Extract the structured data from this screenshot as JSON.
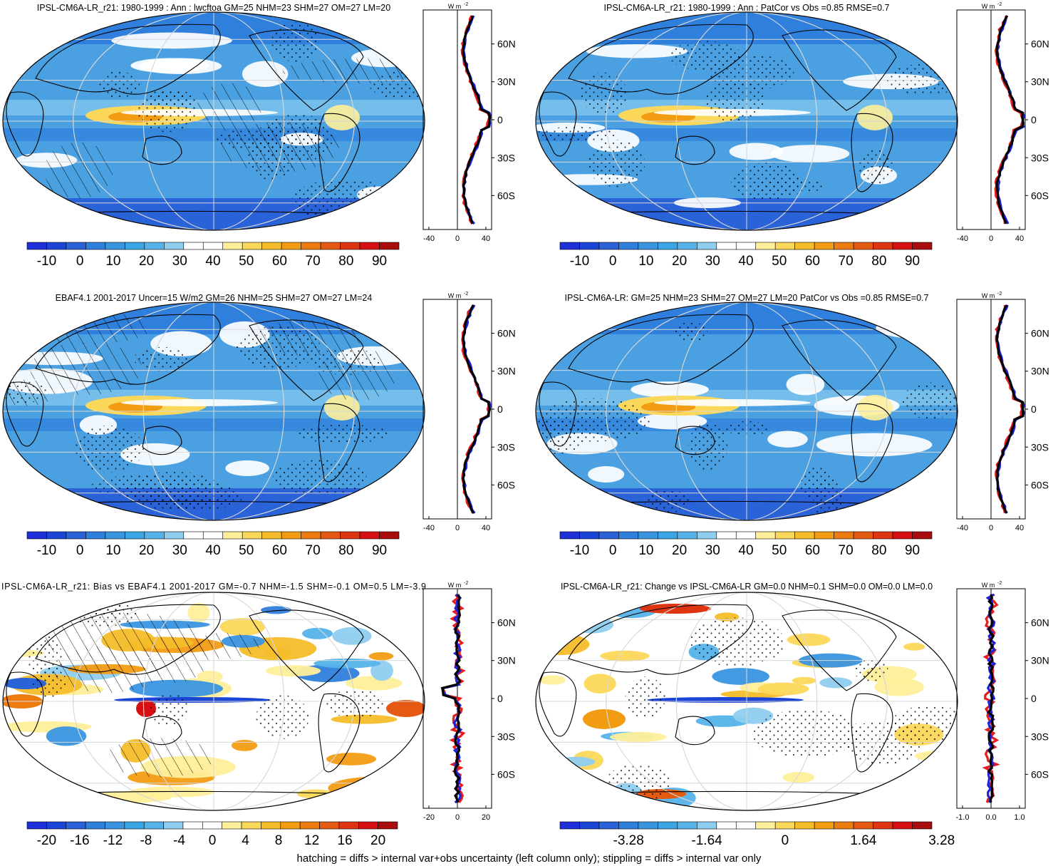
{
  "panels": [
    {
      "id": "p1",
      "title": "IPSL-CM6A-LR_r21: 1980-1999 : Ann : lwcftoa GM=25 NHM=23 SHM=27 OM=27 LM=20",
      "colorbar_ticks": [
        "-10",
        "0",
        "10",
        "20",
        "30",
        "40",
        "50",
        "60",
        "70",
        "80",
        "90"
      ],
      "profile_unit": "W m",
      "profile_unit_exp": "-2",
      "profile_xticks": [
        "-40",
        "0",
        "40"
      ],
      "profile_lat_labels": [
        "60N",
        "30N",
        "0",
        "30S",
        "60S"
      ],
      "hatching": true,
      "stippling": true
    },
    {
      "id": "p2",
      "title": "IPSL-CM6A-LR_r21: 1980-1999 : Ann : PatCor vs Obs =0.85 RMSE=0.7",
      "colorbar_ticks": [
        "-10",
        "0",
        "10",
        "20",
        "30",
        "40",
        "50",
        "60",
        "70",
        "80",
        "90"
      ],
      "profile_unit": "W m",
      "profile_unit_exp": "-2",
      "profile_xticks": [
        "-40",
        "0",
        "40"
      ],
      "profile_lat_labels": [
        "60N",
        "30N",
        "0",
        "30S",
        "60S"
      ],
      "hatching": false,
      "stippling": true
    },
    {
      "id": "p3",
      "title": "EBAF4.1 2001-2017 Uncer=15 W/m2 GM=26 NHM=25 SHM=27 OM=27 LM=24",
      "colorbar_ticks": [
        "-10",
        "0",
        "10",
        "20",
        "30",
        "40",
        "50",
        "60",
        "70",
        "80",
        "90"
      ],
      "profile_unit": "W m",
      "profile_unit_exp": "-2",
      "profile_xticks": [
        "-40",
        "0",
        "40"
      ],
      "profile_lat_labels": [
        "60N",
        "30N",
        "0",
        "30S",
        "60S"
      ],
      "hatching": true,
      "stippling": true
    },
    {
      "id": "p4",
      "title": "IPSL-CM6A-LR: GM=25 NHM=23 SHM=27 OM=27 LM=20 PatCor vs Obs =0.85 RMSE=0.7",
      "colorbar_ticks": [
        "-10",
        "0",
        "10",
        "20",
        "30",
        "40",
        "50",
        "60",
        "70",
        "80",
        "90"
      ],
      "profile_unit": "W m",
      "profile_unit_exp": "-2",
      "profile_xticks": [
        "-40",
        "0",
        "40"
      ],
      "profile_lat_labels": [
        "60N",
        "30N",
        "0",
        "30S",
        "60S"
      ],
      "hatching": false,
      "stippling": true
    },
    {
      "id": "p5",
      "title": "IPSL-CM6A-LR_r21: Bias vs EBAF4.1 2001-2017 GM=-0.7 NHM=-1.5 SHM=-0.1 OM=0.5 LM=-3.9",
      "colorbar_ticks": [
        "-20",
        "-16",
        "-12",
        "-8",
        "-4",
        "0",
        "4",
        "8",
        "12",
        "16",
        "20"
      ],
      "profile_unit": "W m",
      "profile_unit_exp": "-2",
      "profile_xticks": [
        "-20",
        "0",
        "20"
      ],
      "profile_lat_labels": [
        "60N",
        "30N",
        "0",
        "30S",
        "60S"
      ],
      "hatching": true,
      "stippling": true
    },
    {
      "id": "p6",
      "title": "IPSL-CM6A-LR_r21: Change vs IPSL-CM6A-LR GM=0.0 NHM=0.1 SHM=0.0 OM=0.0 LM=0.0",
      "colorbar_ticks": [
        "-3.28",
        "-1.64",
        "0",
        "1.64",
        "3.28"
      ],
      "profile_unit": "W m",
      "profile_unit_exp": "-2",
      "profile_xticks": [
        "-1.0",
        "0.0",
        "1.0"
      ],
      "profile_lat_labels": [
        "60N",
        "30N",
        "0",
        "30S",
        "60S"
      ],
      "hatching": false,
      "stippling": true
    }
  ],
  "colors": {
    "full_palette": [
      "#1f2fd9",
      "#1a45d6",
      "#2a62d8",
      "#2f7fdc",
      "#3a95e0",
      "#3aa6e4",
      "#55b3ea",
      "#8fcdf0",
      "#ffffff",
      "#ffffff",
      "#ffef9a",
      "#fcd85a",
      "#f6bd2a",
      "#f29c12",
      "#ec7b10",
      "#e55a12",
      "#df3412",
      "#d50f12",
      "#a80c0c"
    ],
    "diverging_palette": [
      "#1f2fd9",
      "#1a45d6",
      "#2a62d8",
      "#2f7fdc",
      "#3a95e0",
      "#3aa6e4",
      "#55b3ea",
      "#8fcdf0",
      "#ffffff",
      "#ffffff",
      "#ffef9a",
      "#fcd85a",
      "#f6bd2a",
      "#f29c12",
      "#ec7b10",
      "#e55a12",
      "#df3412",
      "#d50f12",
      "#a80c0c"
    ],
    "map_mean_field": "#4aa0e0",
    "map_diff_field": "#ffffff",
    "profile_model": "#e81c1c",
    "profile_obs": "#1c22e0",
    "profile_mean": "#000000"
  },
  "caption": "hatching = diffs > internal var+obs uncertainty (left column only); stippling = diffs > internal var only"
}
